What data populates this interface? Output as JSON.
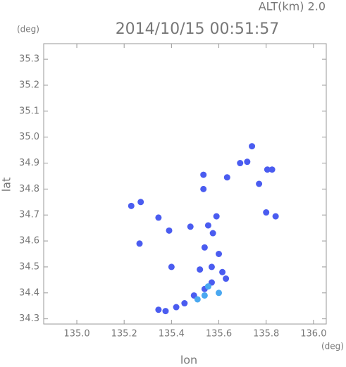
{
  "chart_data": {
    "type": "scatter",
    "title": "2014/10/15 00:51:57",
    "subtitle": "ALT(km) 2.0",
    "x_label": "lon",
    "y_label": "lat",
    "x_unit": "(deg)",
    "y_unit": "(deg)",
    "xlim": [
      134.86,
      136.054
    ],
    "ylim": [
      34.28,
      35.36
    ],
    "xticks": [
      {
        "value": 135.0,
        "label": "135.0"
      },
      135.2,
      135.4,
      135.6,
      135.8,
      {
        "value": 136.0,
        "label": "136.0"
      }
    ],
    "yticks": [
      34.3,
      34.4,
      34.5,
      34.6,
      34.7,
      34.8,
      34.9,
      {
        "value": 35.0,
        "label": "35.0"
      },
      35.1,
      35.2,
      35.3
    ],
    "series": [
      {
        "color": "#4a5cf0",
        "x": [
          135.23,
          135.27,
          135.345,
          135.39,
          135.265,
          135.4,
          135.535,
          135.535,
          135.635,
          135.74,
          135.69,
          135.72,
          135.77,
          135.805,
          135.825,
          135.8,
          135.84,
          135.48,
          135.555,
          135.59,
          135.575,
          135.54,
          135.52,
          135.57,
          135.615,
          135.6,
          135.63,
          135.57,
          135.54,
          135.495,
          135.455,
          135.42,
          135.375,
          135.345
        ],
        "y": [
          34.735,
          34.75,
          34.69,
          34.64,
          34.59,
          34.5,
          34.855,
          34.8,
          34.845,
          34.965,
          34.9,
          34.905,
          34.82,
          34.875,
          34.875,
          34.71,
          34.695,
          34.655,
          34.66,
          34.695,
          34.63,
          34.575,
          34.49,
          34.5,
          34.48,
          34.55,
          34.455,
          34.44,
          34.415,
          34.39,
          34.36,
          34.345,
          34.33,
          34.335
        ]
      },
      {
        "color": "#4aa8f0",
        "x": [
          135.6,
          135.51,
          135.54,
          135.555
        ],
        "y": [
          34.4,
          34.375,
          34.39,
          34.425
        ]
      }
    ]
  }
}
